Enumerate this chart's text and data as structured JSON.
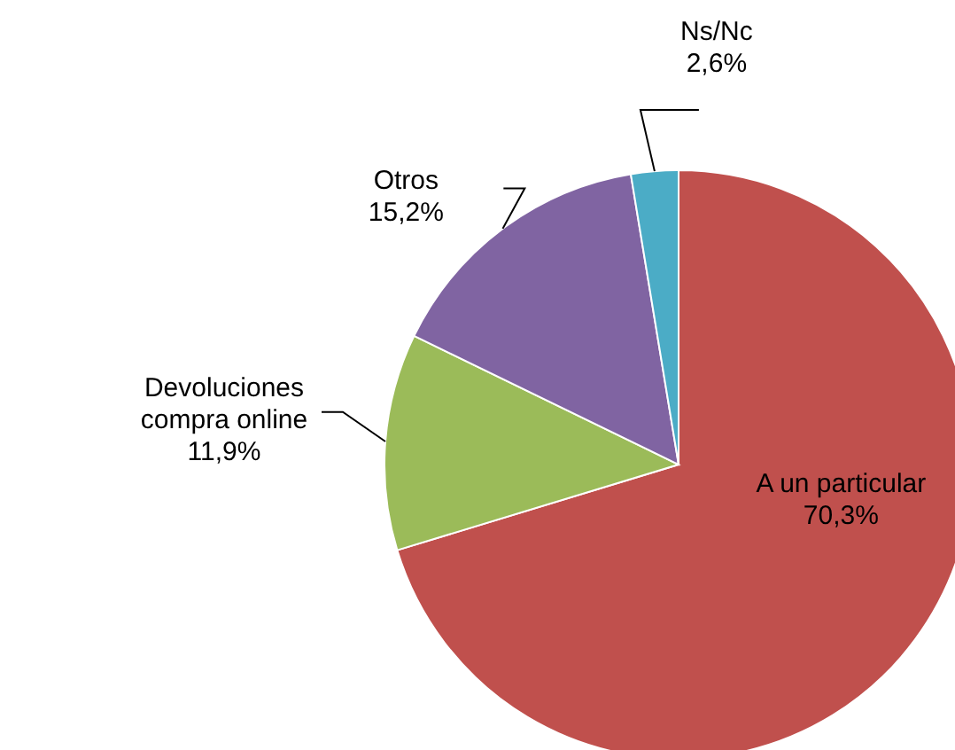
{
  "chart_data": {
    "type": "pie",
    "categories": [
      "A un particular",
      "Devoluciones compra online",
      "Otros",
      "Ns/Nc"
    ],
    "values": [
      70.3,
      11.9,
      15.2,
      2.6
    ],
    "value_labels": [
      "70,3%",
      "11,9%",
      "15,2%",
      "2,6%"
    ],
    "colors": [
      "#c0504d",
      "#9bbb59",
      "#8064a2",
      "#4bacc6"
    ]
  }
}
